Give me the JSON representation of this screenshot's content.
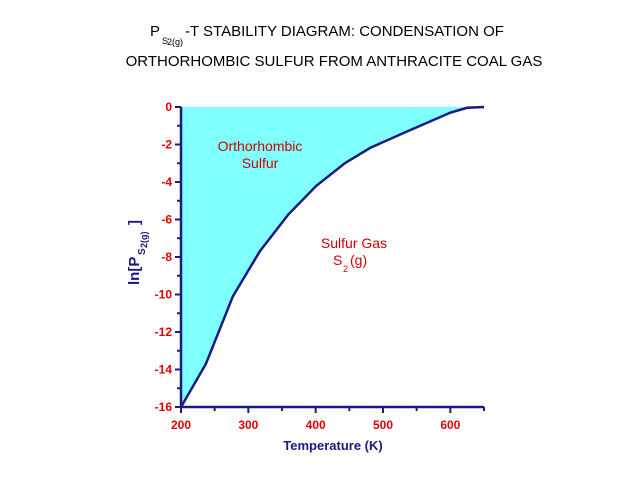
{
  "chart_data": {
    "type": "area",
    "title_line1_prefix": "P",
    "title_sub": "S",
    "title_sub2": "2(g)",
    "title_line1_suffix": "-T STABILITY DIAGRAM: CONDENSATION OF",
    "title_line2": "ORTHORHOMBIC SULFUR FROM ANTHRACITE COAL GAS",
    "xlabel": "Temperature (K)",
    "ylabel_prefix": "ln[P",
    "ylabel_sub": "S",
    "ylabel_sub2": "2(g)",
    "ylabel_suffix": "]",
    "xlim": [
      200,
      650
    ],
    "ylim": [
      -16,
      0
    ],
    "xticks": [
      200,
      300,
      400,
      500,
      600
    ],
    "yticks": [
      0,
      -2,
      -4,
      -6,
      -8,
      -10,
      -12,
      -14,
      -16
    ],
    "series": [
      {
        "name": "phase boundary",
        "x": [
          200,
          237,
          277,
          317,
          359,
          401,
          444,
          481,
          531,
          600,
          625,
          650
        ],
        "y": [
          -16,
          -13.7,
          -10.1,
          -7.7,
          -5.75,
          -4.2,
          -2.98,
          -2.18,
          -1.38,
          -0.3,
          -0.04,
          0
        ]
      }
    ],
    "regions": {
      "solid_line1": "Orthorhombic",
      "solid_line2": "Sulfur",
      "gas_line1": "Sulfur Gas",
      "gas_line2_prefix": "S",
      "gas_line2_sub": "2",
      "gas_line2_suffix": "(g)"
    },
    "colors": {
      "fill": "#80ffff",
      "line": "#1a1a80",
      "tick": "#e00000"
    }
  }
}
